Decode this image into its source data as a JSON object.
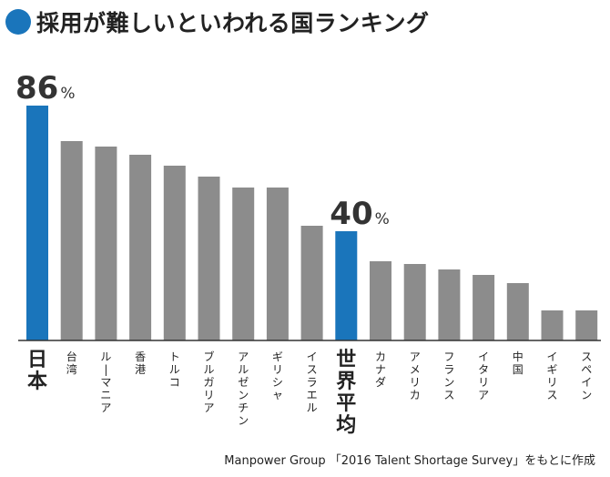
{
  "title": "採用が難しいといわれる国ランキング",
  "source": "Manpower Group 「2016 Talent Shortage Survey」をもとに作成",
  "colors": {
    "highlight": "#1a75bb",
    "normal": "#8c8c8c",
    "axis": "#333333",
    "title_dot": "#1a75bb"
  },
  "chart_data": {
    "type": "bar",
    "categories": [
      "日本",
      "台湾",
      "ルーマニア",
      "香港",
      "トルコ",
      "ブルガリア",
      "アルゼンチン",
      "ギリシャ",
      "イスラエル",
      "世界平均",
      "カナダ",
      "アメリカ",
      "フランス",
      "イタリア",
      "中国",
      "イギリス",
      "スペイン"
    ],
    "values": [
      86,
      73,
      71,
      68,
      64,
      60,
      56,
      56,
      42,
      40,
      29,
      28,
      26,
      24,
      21,
      11,
      11
    ],
    "highlight": [
      "日本",
      "世界平均"
    ],
    "value_labels": [
      {
        "category": "日本",
        "number": "86",
        "unit": "%"
      },
      {
        "category": "世界平均",
        "number": "40",
        "unit": "%"
      }
    ],
    "ylim": [
      0,
      100
    ],
    "grid": false,
    "legend": "none"
  }
}
